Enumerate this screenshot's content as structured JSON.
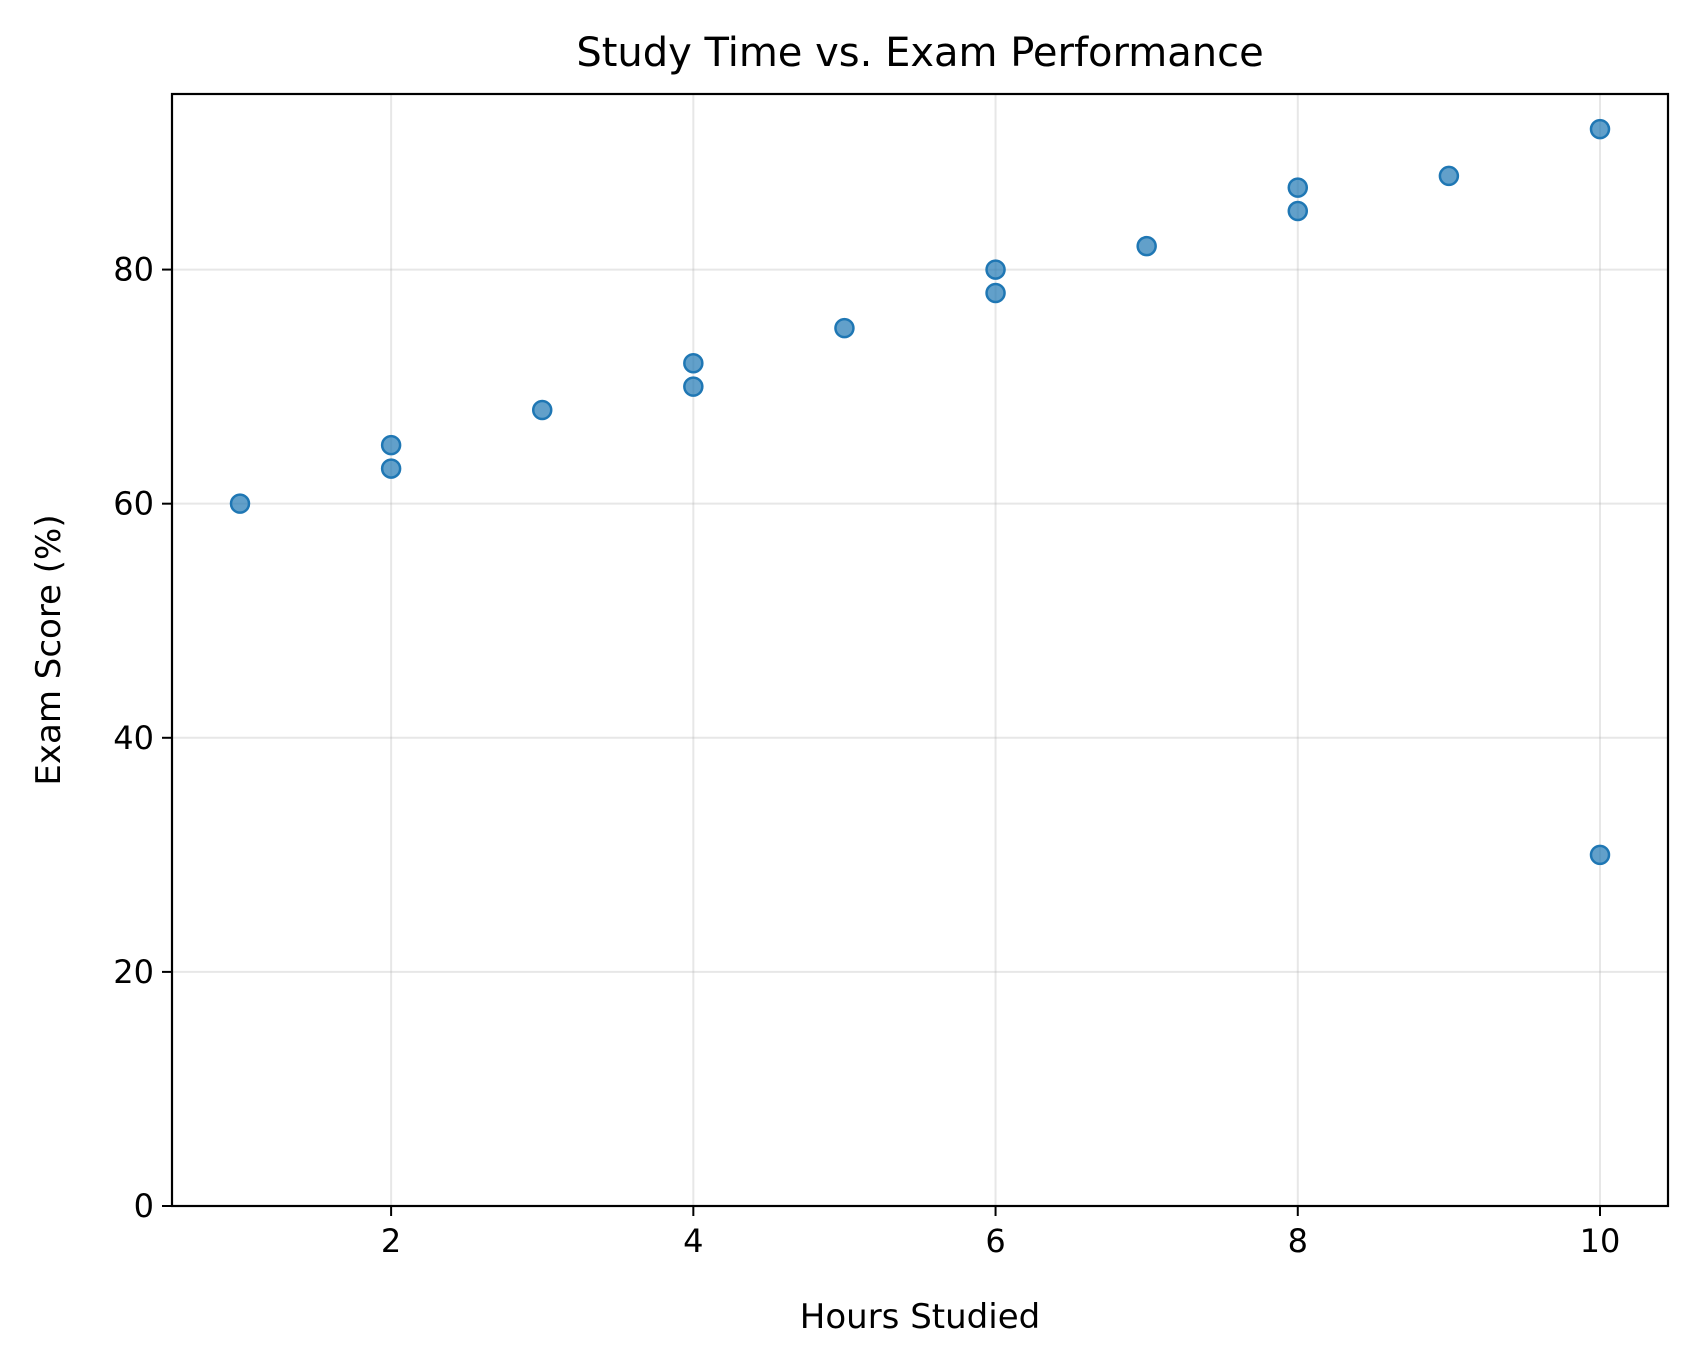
{
  "chart_data": {
    "type": "scatter",
    "title": "Study Time vs. Exam Performance",
    "xlabel": "Hours Studied",
    "ylabel": "Exam Score (%)",
    "xlim": [
      0.55,
      10.45
    ],
    "ylim": [
      0,
      95
    ],
    "xticks": [
      2,
      4,
      6,
      8,
      10
    ],
    "yticks": [
      0,
      20,
      40,
      60,
      80
    ],
    "grid": true,
    "point_color": "#1f77b4",
    "points": [
      {
        "x": 1,
        "y": 60
      },
      {
        "x": 2,
        "y": 65
      },
      {
        "x": 2,
        "y": 63
      },
      {
        "x": 3,
        "y": 68
      },
      {
        "x": 4,
        "y": 72
      },
      {
        "x": 4,
        "y": 70
      },
      {
        "x": 5,
        "y": 75
      },
      {
        "x": 6,
        "y": 80
      },
      {
        "x": 6,
        "y": 78
      },
      {
        "x": 7,
        "y": 82
      },
      {
        "x": 8,
        "y": 87
      },
      {
        "x": 8,
        "y": 85
      },
      {
        "x": 9,
        "y": 88
      },
      {
        "x": 10,
        "y": 92
      },
      {
        "x": 10,
        "y": 30
      }
    ]
  }
}
